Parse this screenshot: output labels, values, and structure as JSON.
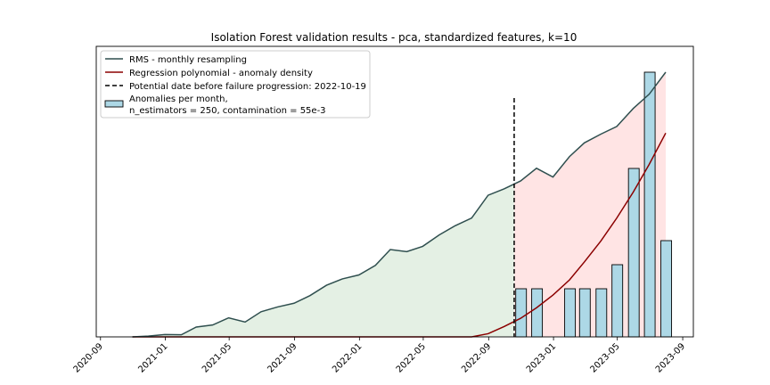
{
  "chart_data": {
    "type": "line",
    "title": "Isolation Forest validation results - pca, standardized features, k=10",
    "xlabel": "",
    "ylabel": "",
    "x_axis": {
      "type": "date",
      "range": [
        "2020-08-24",
        "2023-09-21"
      ],
      "tick_labels": [
        "2020-09",
        "2021-01",
        "2021-05",
        "2021-09",
        "2022-01",
        "2022-05",
        "2022-09",
        "2023-01",
        "2023-05",
        "2023-09"
      ],
      "tick_dates": [
        "2020-09-01",
        "2021-01-01",
        "2021-05-01",
        "2021-09-01",
        "2022-01-01",
        "2022-05-01",
        "2022-09-01",
        "2023-01-01",
        "2023-05-01",
        "2023-09-01"
      ]
    },
    "y_axis": {
      "visible_ticks": false,
      "range": [
        0,
        1
      ]
    },
    "legend": {
      "placement": "top-left",
      "entries": [
        {
          "key": "rms",
          "label": "RMS - monthly resampling",
          "marker": "line",
          "color": "#2f4f4f"
        },
        {
          "key": "poly",
          "label": "Regression polynomial - anomaly density",
          "marker": "line",
          "color": "#8b0000"
        },
        {
          "key": "failure",
          "label": "Potential date before failure progression: 2022-10-19",
          "marker": "dashed-line",
          "color": "#000000"
        },
        {
          "key": "anom",
          "label_lines": [
            "Anomalies per month,",
            "n_estimators = 250, contamination = 55e-3"
          ],
          "marker": "patch",
          "color": "#add8e6"
        }
      ]
    },
    "failure_date": "2022-10-19",
    "series": [
      {
        "key": "rms",
        "type": "line",
        "color": "#2f4f4f",
        "fill_before_failure": "#e4f0e4",
        "fill_after_failure": "#ffe4e4",
        "x": [
          "2020-10-31",
          "2020-11-30",
          "2020-12-31",
          "2021-01-31",
          "2021-02-28",
          "2021-03-31",
          "2021-04-30",
          "2021-05-31",
          "2021-06-30",
          "2021-07-31",
          "2021-08-31",
          "2021-09-30",
          "2021-10-31",
          "2021-11-30",
          "2021-12-31",
          "2022-01-31",
          "2022-02-28",
          "2022-03-31",
          "2022-04-30",
          "2022-05-31",
          "2022-06-30",
          "2022-07-31",
          "2022-08-31",
          "2022-09-30",
          "2022-10-31",
          "2022-11-30",
          "2022-12-31",
          "2023-01-31",
          "2023-02-28",
          "2023-03-31",
          "2023-04-30",
          "2023-05-31",
          "2023-06-30",
          "2023-07-31"
        ],
        "values": [
          0.0,
          0.003,
          0.009,
          0.008,
          0.037,
          0.045,
          0.072,
          0.056,
          0.095,
          0.113,
          0.127,
          0.156,
          0.195,
          0.219,
          0.234,
          0.27,
          0.33,
          0.322,
          0.342,
          0.385,
          0.42,
          0.449,
          0.535,
          0.559,
          0.589,
          0.637,
          0.604,
          0.681,
          0.733,
          0.766,
          0.795,
          0.863,
          0.917,
          1.0
        ]
      },
      {
        "key": "poly",
        "type": "line",
        "color": "#8b0000",
        "x": [
          "2020-10-31",
          "2021-03-31",
          "2021-08-31",
          "2022-01-31",
          "2022-06-30",
          "2022-07-31",
          "2022-08-31",
          "2022-09-30",
          "2022-10-31",
          "2022-11-30",
          "2022-12-31",
          "2023-01-31",
          "2023-02-28",
          "2023-03-31",
          "2023-04-30",
          "2023-05-31",
          "2023-06-30",
          "2023-07-31"
        ],
        "values": [
          0.0,
          0.0,
          0.0,
          0.0,
          0.0,
          0.0,
          0.012,
          0.039,
          0.07,
          0.11,
          0.158,
          0.215,
          0.283,
          0.362,
          0.449,
          0.547,
          0.652,
          0.77
        ]
      },
      {
        "key": "anom",
        "type": "bar",
        "color": "#add8e6",
        "edgecolor": "#000000",
        "x": [
          "2022-11-01",
          "2022-12-01",
          "2023-01-01",
          "2023-02-01",
          "2023-03-01",
          "2023-04-01",
          "2023-05-01",
          "2023-06-01",
          "2023-07-01",
          "2023-08-01"
        ],
        "values": [
          2,
          2,
          0,
          2,
          2,
          2,
          3,
          7,
          11,
          4
        ]
      }
    ]
  }
}
